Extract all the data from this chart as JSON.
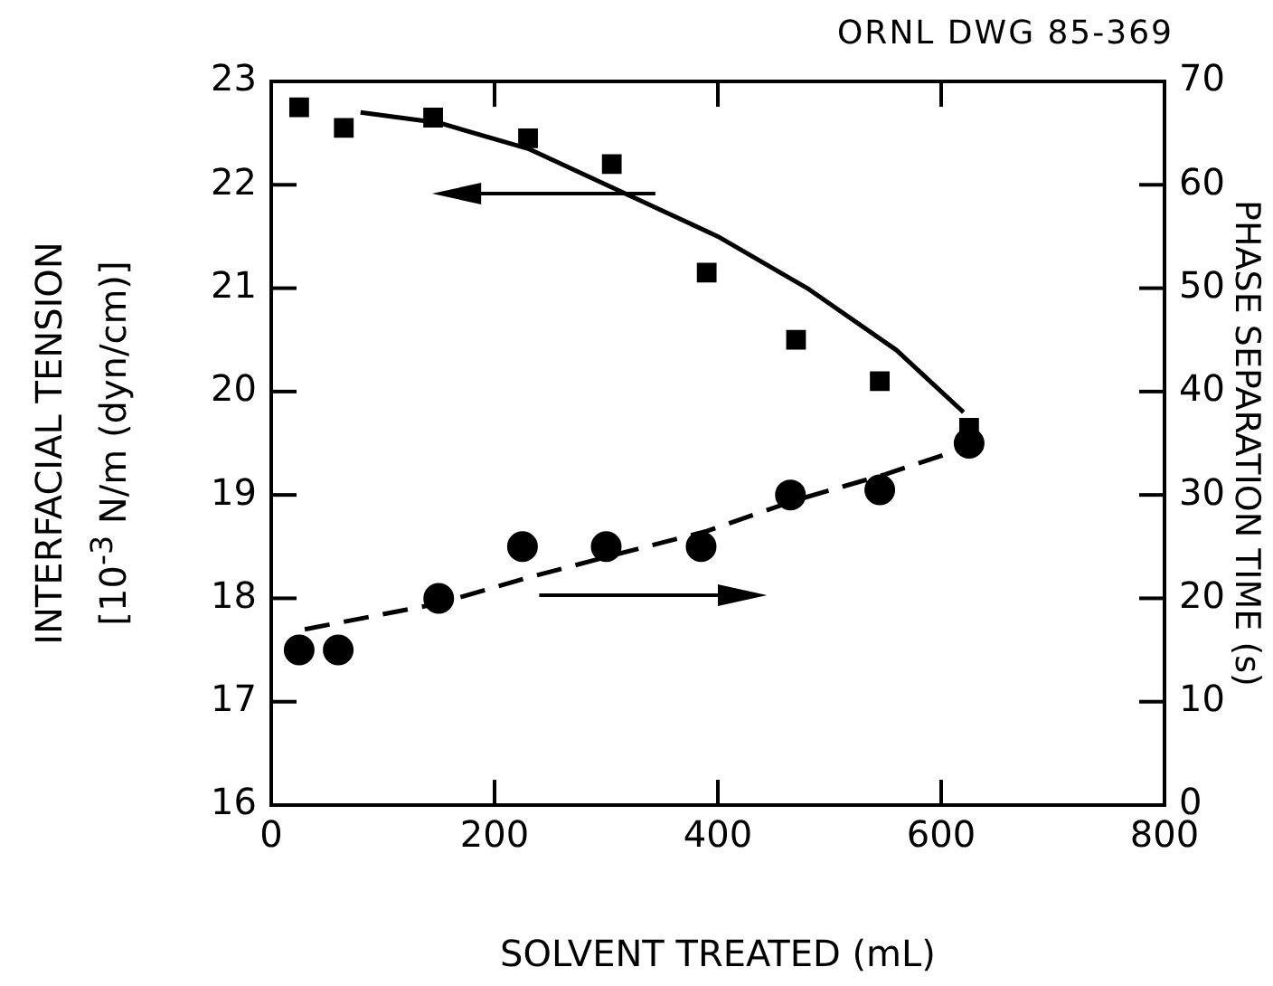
{
  "chart_data": {
    "type": "scatter",
    "ylabel": "INTERFACIAL TENSION\n[10$^{-3}$ N/m (dyn/cm)]",
    "xlabel": "SOLVENT TREATED (mL)",
    "y2label": "PHASE SEPARATION TIME (s)",
    "annotations": [
      "ORNL DWG 85-369"
    ],
    "xlim": [
      0,
      800
    ],
    "xticks": [
      0,
      200,
      400,
      600,
      800
    ],
    "ylim": [
      16,
      23
    ],
    "yticks": [
      16,
      17,
      18,
      19,
      20,
      21,
      22,
      23
    ],
    "y2lim": [
      0,
      70
    ],
    "y2ticks": [
      0,
      10,
      20,
      30,
      40,
      50,
      60,
      70
    ],
    "grid": false,
    "legend": false,
    "series": [
      {
        "type": "scatter",
        "marker": "square",
        "color": "#000000",
        "x": [
          25,
          65,
          145,
          230,
          305,
          390,
          470,
          545,
          625
        ],
        "values": [
          22.75,
          22.55,
          22.65,
          22.45,
          22.2,
          21.15,
          20.5,
          20.1,
          19.65
        ]
      },
      {
        "type": "scatter",
        "marker": "circle",
        "axis": "y2",
        "color": "#000000",
        "x": [
          25,
          60,
          150,
          225,
          300,
          385,
          465,
          545,
          625
        ],
        "values": [
          15,
          15,
          20,
          25,
          25,
          25,
          30,
          30.5,
          35
        ]
      },
      {
        "type": "line",
        "marker": "none",
        "line_style": "solid",
        "color": "#000000",
        "x": [
          80,
          150,
          230,
          300,
          400,
          480,
          560,
          620
        ],
        "values": [
          22.7,
          22.6,
          22.35,
          22.0,
          21.5,
          21.0,
          20.4,
          19.8
        ]
      },
      {
        "type": "line",
        "marker": "none",
        "line_style": "dashed",
        "axis": "y2",
        "color": "#000000",
        "x": [
          30,
          150,
          230,
          300,
          390,
          470,
          550,
          620
        ],
        "values": [
          17,
          19.5,
          22,
          24,
          26.5,
          29.5,
          32,
          34.5
        ]
      }
    ]
  }
}
